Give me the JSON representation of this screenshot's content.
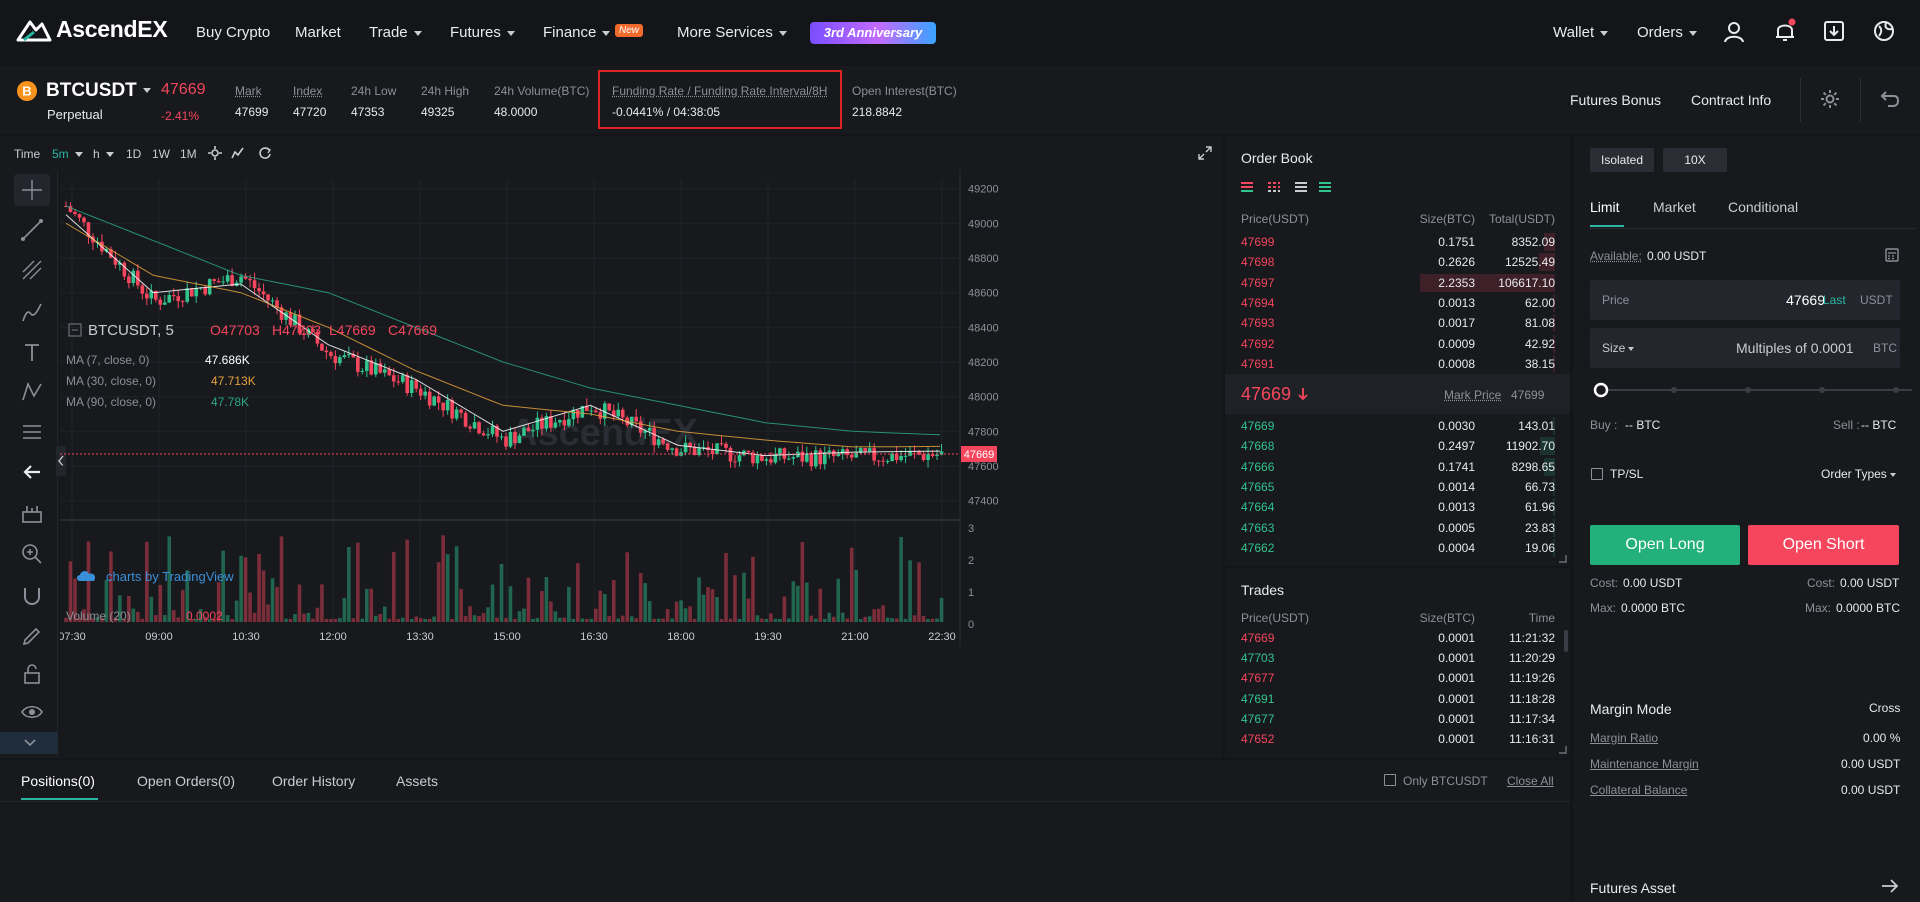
{
  "nav": {
    "logo": "AscendEX",
    "items": [
      {
        "label": "Buy Crypto"
      },
      {
        "label": "Market"
      },
      {
        "label": "Trade"
      },
      {
        "label": "Futures"
      },
      {
        "label": "Finance"
      },
      {
        "label": "More Services"
      }
    ],
    "new_badge": "New",
    "anniversary": "3rd Anniversary",
    "wallet": "Wallet",
    "orders": "Orders"
  },
  "ticker": {
    "symbol": "BTCUSDT",
    "type": "Perpetual",
    "price": "47669",
    "change": "-2.41%",
    "stats": [
      {
        "label": "Mark",
        "value": "47699"
      },
      {
        "label": "Index",
        "value": "47720"
      },
      {
        "label": "24h Low",
        "value": "47353"
      },
      {
        "label": "24h High",
        "value": "49325"
      },
      {
        "label": "24h Volume(BTC)",
        "value": "48.0000"
      },
      {
        "label": "Funding Rate / Funding Rate Interval/8H",
        "value": "-0.0441% / 04:38:05"
      },
      {
        "label": "Open Interest(BTC)",
        "value": "218.8842"
      }
    ],
    "futures_bonus": "Futures Bonus",
    "contract_info": "Contract Info"
  },
  "chart_toolbar": {
    "items": [
      "Time",
      "5m",
      "h",
      "1D",
      "1W",
      "1M"
    ]
  },
  "chart": {
    "symbol_line": "BTCUSDT, 5",
    "open": "O47703",
    "high": "H47703",
    "low": "L47669",
    "close": "C47669",
    "ma7_label": "MA (7, close, 0)",
    "ma7_val": "47.686K",
    "ma30_label": "MA (30, close, 0)",
    "ma30_val": "47.713K",
    "ma90_label": "MA (90, close, 0)",
    "ma90_val": "47.78K",
    "volume_label": "Volume (20)",
    "volume_val": "0.0002",
    "watermark": "AscendEX",
    "tradingview": "charts by TradingView",
    "price_tag": "47669",
    "y_ticks": [
      "49200",
      "49000",
      "48800",
      "48600",
      "48400",
      "48200",
      "48000",
      "47800",
      "47600",
      "47400"
    ],
    "vol_ticks": [
      "3",
      "2",
      "1",
      "0"
    ],
    "x_ticks": [
      "07:30",
      "09:00",
      "10:30",
      "12:00",
      "13:30",
      "15:00",
      "16:30",
      "18:00",
      "19:30",
      "21:00",
      "22:30"
    ]
  },
  "chart_data": {
    "type": "candlestick",
    "x": [
      "07:30",
      "09:00",
      "10:30",
      "12:00",
      "13:30",
      "15:00",
      "16:30",
      "18:00",
      "19:30",
      "21:00",
      "22:30"
    ],
    "close": [
      49100,
      48550,
      48700,
      48250,
      48050,
      47750,
      47950,
      47700,
      47650,
      47650,
      47669
    ],
    "ma7": [
      49050,
      48600,
      48650,
      48300,
      48100,
      47800,
      47950,
      47720,
      47660,
      47680,
      47686
    ],
    "ma30": [
      49000,
      48700,
      48600,
      48400,
      48150,
      47950,
      47900,
      47800,
      47750,
      47710,
      47713
    ],
    "ma90": [
      49100,
      48900,
      48700,
      48600,
      48400,
      48200,
      48050,
      47950,
      47850,
      47800,
      47780
    ],
    "ylim": [
      47300,
      49250
    ],
    "ylabel": "",
    "xlabel": "",
    "volume_ylim": [
      0,
      3
    ]
  },
  "orderbook": {
    "title": "Order Book",
    "headers": [
      "Price(USDT)",
      "Size(BTC)",
      "Total(USDT)"
    ],
    "asks": [
      {
        "price": "47699",
        "size": "0.1751",
        "total": "8352.09",
        "depth": 0.08
      },
      {
        "price": "47698",
        "size": "0.2626",
        "total": "12525.49",
        "depth": 0.12
      },
      {
        "price": "47697",
        "size": "2.2353",
        "total": "106617.10",
        "depth": 1.0
      },
      {
        "price": "47694",
        "size": "0.0013",
        "total": "62.00",
        "depth": 0.01
      },
      {
        "price": "47693",
        "size": "0.0017",
        "total": "81.08",
        "depth": 0.01
      },
      {
        "price": "47692",
        "size": "0.0009",
        "total": "42.92",
        "depth": 0.01
      },
      {
        "price": "47691",
        "size": "0.0008",
        "total": "38.15",
        "depth": 0.01
      }
    ],
    "last_price": "47669",
    "mark_label": "Mark Price",
    "mark_price": "47699",
    "bids": [
      {
        "price": "47669",
        "size": "0.0030",
        "total": "143.01",
        "depth": 0.01
      },
      {
        "price": "47668",
        "size": "0.2497",
        "total": "11902.70",
        "depth": 0.11
      },
      {
        "price": "47666",
        "size": "0.1741",
        "total": "8298.65",
        "depth": 0.08
      },
      {
        "price": "47665",
        "size": "0.0014",
        "total": "66.73",
        "depth": 0.01
      },
      {
        "price": "47664",
        "size": "0.0013",
        "total": "61.96",
        "depth": 0.01
      },
      {
        "price": "47663",
        "size": "0.0005",
        "total": "23.83",
        "depth": 0.01
      },
      {
        "price": "47662",
        "size": "0.0004",
        "total": "19.06",
        "depth": 0.01
      }
    ]
  },
  "trades": {
    "title": "Trades",
    "headers": [
      "Price(USDT)",
      "Size(BTC)",
      "Time"
    ],
    "rows": [
      {
        "price": "47669",
        "size": "0.0001",
        "time": "11:21:32",
        "side": "sell"
      },
      {
        "price": "47703",
        "size": "0.0001",
        "time": "11:20:29",
        "side": "buy"
      },
      {
        "price": "47677",
        "size": "0.0001",
        "time": "11:19:26",
        "side": "sell"
      },
      {
        "price": "47691",
        "size": "0.0001",
        "time": "11:18:28",
        "side": "buy"
      },
      {
        "price": "47677",
        "size": "0.0001",
        "time": "11:17:34",
        "side": "buy"
      },
      {
        "price": "47652",
        "size": "0.0001",
        "time": "11:16:31",
        "side": "sell"
      }
    ]
  },
  "order_form": {
    "margin_type": "Isolated",
    "leverage": "10X",
    "tabs": [
      "Limit",
      "Market",
      "Conditional"
    ],
    "available_label": "Available:",
    "available_value": "0.00 USDT",
    "price_label": "Price",
    "price_value": "47669",
    "price_last": "Last",
    "price_unit": "USDT",
    "size_label": "Size",
    "size_placeholder": "Multiples of 0.0001",
    "size_unit": "BTC",
    "buy_label": "Buy :",
    "buy_value": "-- BTC",
    "sell_label": "Sell :",
    "sell_value": "-- BTC",
    "tpsl": "TP/SL",
    "order_types": "Order Types",
    "open_long": "Open Long",
    "open_short": "Open Short",
    "cost_label": "Cost:",
    "cost_long": "0.00 USDT",
    "cost_short": "0.00 USDT",
    "max_label": "Max:",
    "max_long": "0.0000 BTC",
    "max_short": "0.0000 BTC",
    "margin_mode_label": "Margin Mode",
    "margin_mode_value": "Cross",
    "margin_ratio_label": "Margin Ratio",
    "margin_ratio_value": "0.00 %",
    "maint_margin_label": "Maintenance Margin",
    "maint_margin_value": "0.00 USDT",
    "collateral_label": "Collateral Balance",
    "collateral_value": "0.00 USDT",
    "futures_asset": "Futures Asset"
  },
  "bottom": {
    "tabs": [
      "Positions(0)",
      "Open Orders(0)",
      "Order History",
      "Assets"
    ],
    "only_symbol": "Only BTCUSDT",
    "close_all": "Close All"
  },
  "colors": {
    "up": "#31c48d",
    "down": "#f6465d",
    "accent": "#2bb6a3",
    "ma7": "#ffffff",
    "ma30": "#e5a13b",
    "ma90": "#2aa588"
  }
}
